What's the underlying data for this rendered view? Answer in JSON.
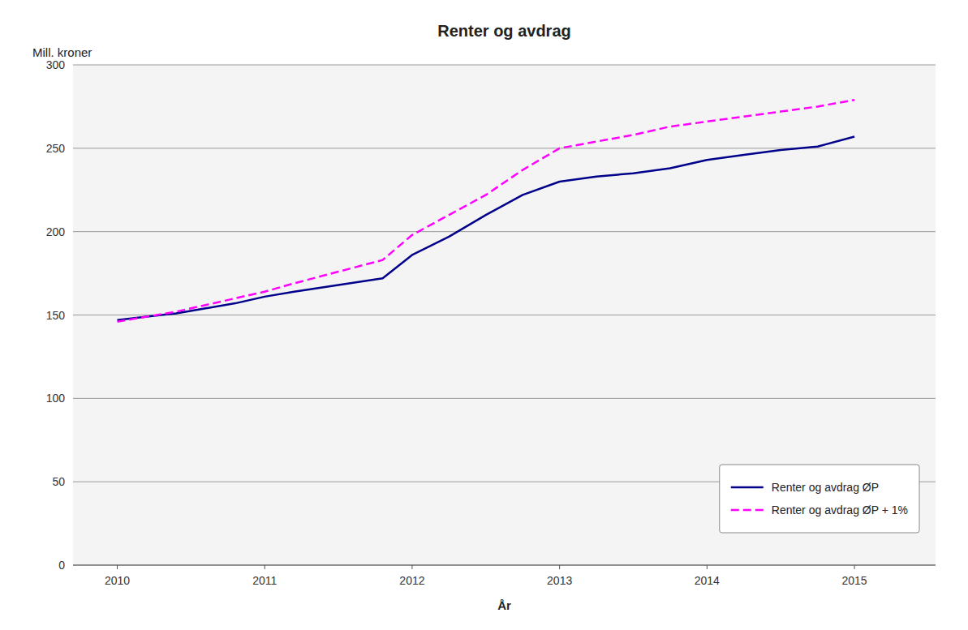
{
  "chart_data": {
    "type": "line",
    "title": "Renter og avdrag",
    "xlabel": "År",
    "ylabel": "Mill. kroner",
    "x": [
      2010,
      2010.2,
      2010.4,
      2010.6,
      2010.8,
      2011,
      2011.2,
      2011.5,
      2011.8,
      2012,
      2012.25,
      2012.5,
      2012.75,
      2013,
      2013.25,
      2013.5,
      2013.75,
      2014,
      2014.25,
      2014.5,
      2014.75,
      2015
    ],
    "series": [
      {
        "name": "Renter og avdrag ØP",
        "color": "#00008B",
        "line_style": "solid",
        "values": [
          147,
          149,
          151,
          154,
          157,
          161,
          164,
          168,
          172,
          186,
          197,
          210,
          222,
          230,
          233,
          235,
          238,
          243,
          246,
          249,
          251,
          257
        ]
      },
      {
        "name": "Renter og avdrag ØP + 1%",
        "color": "#FF00FF",
        "line_style": "dashed",
        "values": [
          146,
          149,
          152,
          156,
          160,
          164,
          169,
          176,
          183,
          198,
          210,
          222,
          237,
          250,
          254,
          258,
          263,
          266,
          269,
          272,
          275,
          279
        ]
      }
    ],
    "xlim": [
      2009.7,
      2015.55
    ],
    "xticks": [
      2010,
      2011,
      2012,
      2013,
      2014,
      2015
    ],
    "ylim": [
      0,
      300
    ],
    "yticks": [
      0,
      50,
      100,
      150,
      200,
      250,
      300
    ],
    "grid": "y",
    "legend": "lower right"
  }
}
